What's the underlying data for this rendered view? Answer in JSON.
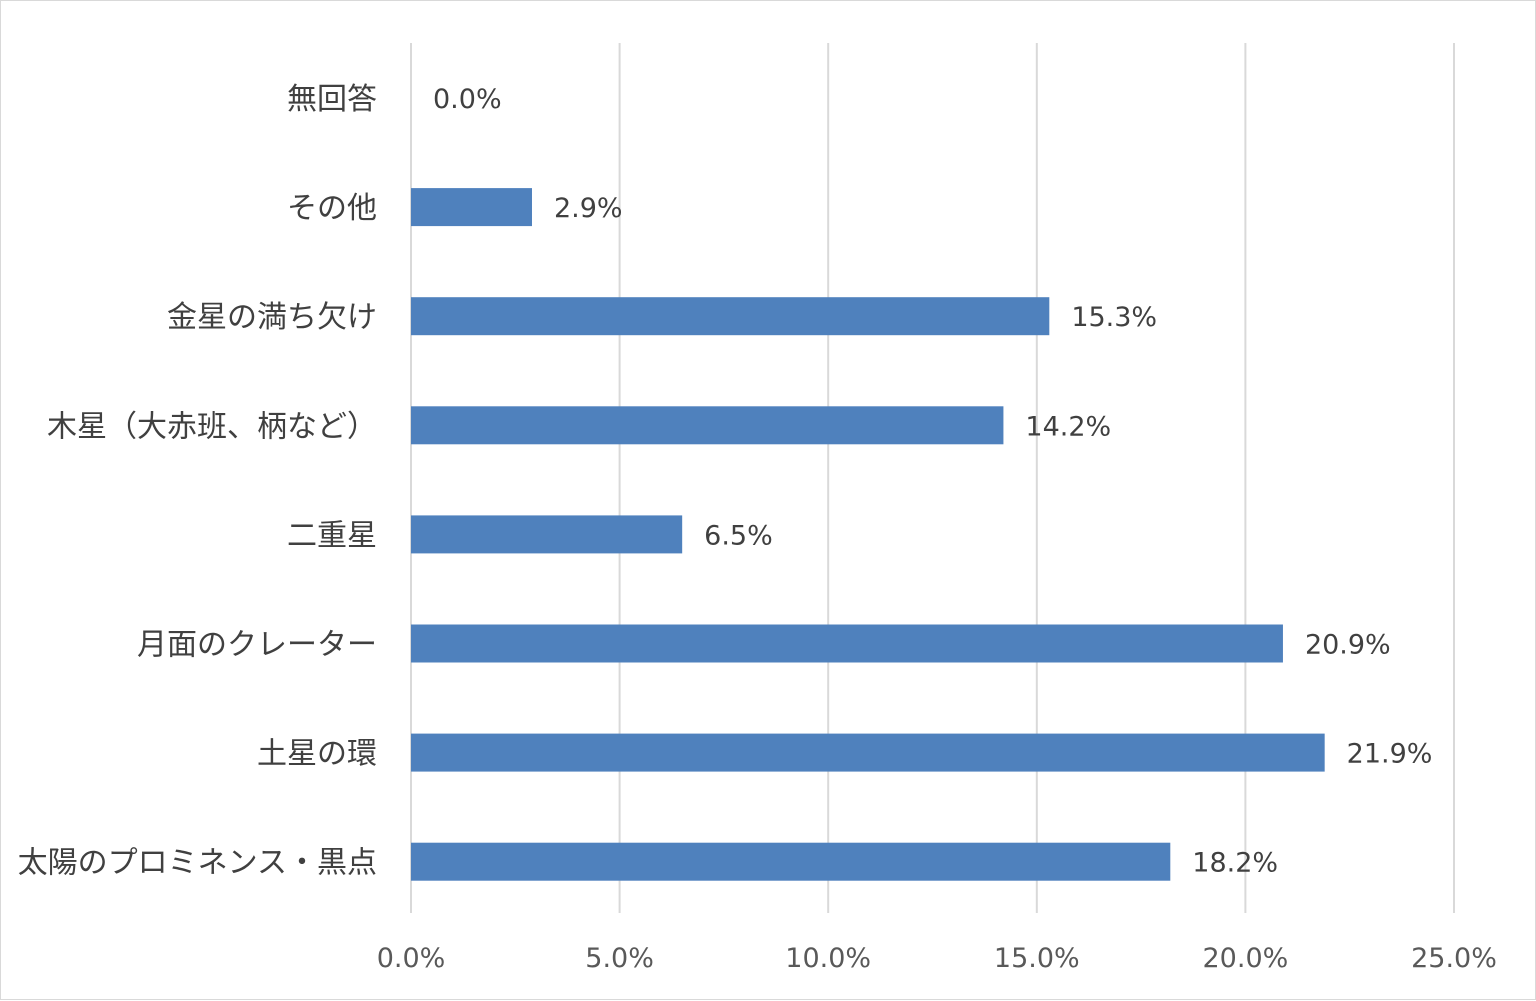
{
  "chart_data": {
    "type": "bar",
    "orientation": "horizontal",
    "categories": [
      "無回答",
      "その他",
      "金星の満ち欠け",
      "木星（大赤班、柄など）",
      "二重星",
      "月面のクレーター",
      "土星の環",
      "太陽のプロミネンス・黒点"
    ],
    "values": [
      0.0,
      2.9,
      15.3,
      14.2,
      6.5,
      20.9,
      21.9,
      18.2
    ],
    "value_labels": [
      "0.0%",
      "2.9%",
      "15.3%",
      "14.2%",
      "6.5%",
      "20.9%",
      "21.9%",
      "18.2%"
    ],
    "xlim": [
      0,
      25
    ],
    "xticks": [
      0,
      5,
      10,
      15,
      20,
      25
    ],
    "xtick_labels": [
      "0.0%",
      "5.0%",
      "10.0%",
      "15.0%",
      "20.0%",
      "25.0%"
    ],
    "grid": "vertical",
    "bar_color": "#4f81bd",
    "grid_color": "#d9d9d9",
    "title": "",
    "xlabel": "",
    "ylabel": ""
  }
}
